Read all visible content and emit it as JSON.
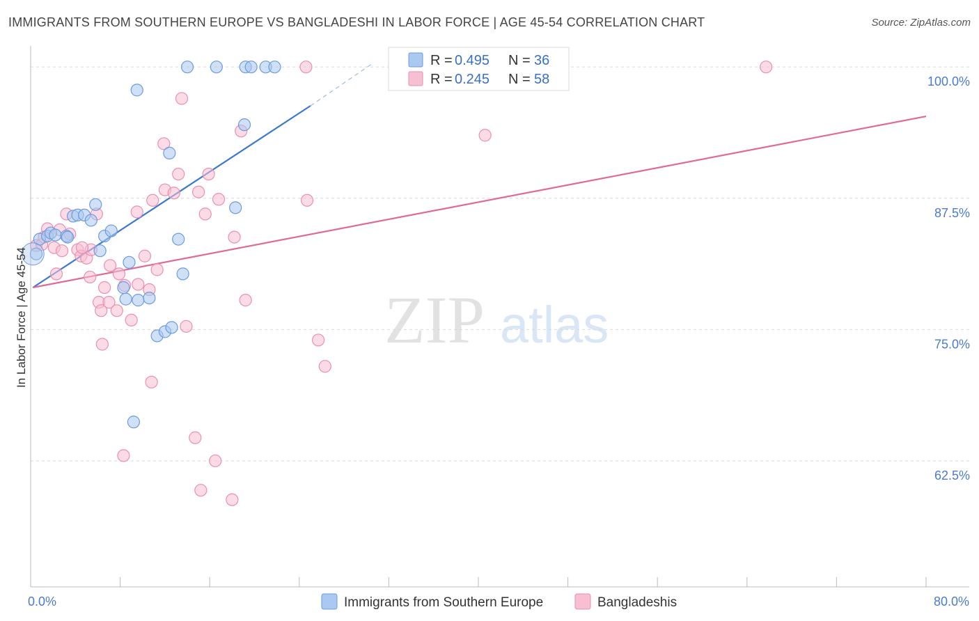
{
  "header": {
    "title": "IMMIGRANTS FROM SOUTHERN EUROPE VS BANGLADESHI IN LABOR FORCE | AGE 45-54 CORRELATION CHART",
    "source": "Source: ZipAtlas.com"
  },
  "watermark": {
    "zip": "ZIP",
    "atlas": "atlas"
  },
  "colors": {
    "blue_fill": "#aac8f0",
    "blue_stroke": "#6b9be0",
    "blue_line": "#3a78d0",
    "pink_fill": "#f7bfd2",
    "pink_stroke": "#ea8fb0",
    "pink_line": "#e06a96",
    "axis_text": "#4a7bd0",
    "grid": "#d8d8d8"
  },
  "chart_data": {
    "type": "scatter",
    "title": "IMMIGRANTS FROM SOUTHERN EUROPE VS BANGLADESHI IN LABOR FORCE | AGE 45-54 CORRELATION CHART",
    "xlabel": "",
    "ylabel": "In Labor Force | Age 45-54",
    "xlim": [
      0,
      80
    ],
    "ylim": [
      50.5,
      102
    ],
    "x_tick_labels": [
      {
        "value": 0,
        "label": "0.0%"
      },
      {
        "value": 80,
        "label": "80.0%"
      }
    ],
    "x_minor_ticks": [
      8,
      16,
      24,
      32,
      40,
      48,
      56,
      64,
      72
    ],
    "y_ticks": [
      {
        "value": 100,
        "label": "100.0%"
      },
      {
        "value": 87.5,
        "label": "87.5%"
      },
      {
        "value": 75,
        "label": "75.0%"
      },
      {
        "value": 62.5,
        "label": "62.5%"
      }
    ],
    "legend": {
      "rows": [
        {
          "r_label": "R =",
          "r": "0.495",
          "n_label": "N =",
          "n": "36"
        },
        {
          "r_label": "R =",
          "r": "0.245",
          "n_label": "N =",
          "n": "58"
        }
      ]
    },
    "series": [
      {
        "name": "Immigrants from Southern Europe",
        "trend": {
          "x": [
            0.2,
            25
          ],
          "y": [
            79.0,
            96.3
          ],
          "dashed_to": [
            30.5,
            100.3
          ]
        },
        "points": [
          [
            0.5,
            82.2
          ],
          [
            0.8,
            83.6
          ],
          [
            1.5,
            83.9
          ],
          [
            1.8,
            84.2
          ],
          [
            2.2,
            84.0
          ],
          [
            3.2,
            83.9
          ],
          [
            3.3,
            83.8
          ],
          [
            3.8,
            85.8
          ],
          [
            4.2,
            85.9
          ],
          [
            4.8,
            85.9
          ],
          [
            5.4,
            85.4
          ],
          [
            5.8,
            86.9
          ],
          [
            6.2,
            82.5
          ],
          [
            6.6,
            83.9
          ],
          [
            7.2,
            84.4
          ],
          [
            8.3,
            79.0
          ],
          [
            8.5,
            77.9
          ],
          [
            8.8,
            81.4
          ],
          [
            9.5,
            97.8
          ],
          [
            9.6,
            77.8
          ],
          [
            10.6,
            78.0
          ],
          [
            11.3,
            74.4
          ],
          [
            12.0,
            74.8
          ],
          [
            12.6,
            75.2
          ],
          [
            12.4,
            91.8
          ],
          [
            13.2,
            83.6
          ],
          [
            13.6,
            80.3
          ],
          [
            14.0,
            100.0
          ],
          [
            16.6,
            100.0
          ],
          [
            18.3,
            86.6
          ],
          [
            19.1,
            94.5
          ],
          [
            19.2,
            100.0
          ],
          [
            19.7,
            100.0
          ],
          [
            21.0,
            100.0
          ],
          [
            21.8,
            100.0
          ],
          [
            9.2,
            66.2
          ]
        ]
      },
      {
        "name": "Bangladeshis",
        "trend": {
          "x": [
            0.2,
            80
          ],
          "y": [
            79.0,
            95.3
          ]
        },
        "points": [
          [
            0.5,
            83.0
          ],
          [
            1.0,
            83.1
          ],
          [
            1.5,
            84.6
          ],
          [
            2.1,
            82.8
          ],
          [
            2.3,
            80.3
          ],
          [
            2.8,
            82.5
          ],
          [
            3.2,
            86.0
          ],
          [
            3.5,
            84.1
          ],
          [
            4.2,
            82.6
          ],
          [
            4.5,
            82.0
          ],
          [
            5.0,
            81.8
          ],
          [
            5.3,
            80.0
          ],
          [
            5.4,
            82.6
          ],
          [
            5.9,
            86.0
          ],
          [
            6.1,
            77.6
          ],
          [
            6.3,
            76.8
          ],
          [
            6.6,
            79.0
          ],
          [
            7.0,
            77.6
          ],
          [
            7.1,
            81.1
          ],
          [
            7.7,
            76.8
          ],
          [
            7.9,
            80.3
          ],
          [
            8.3,
            63.0
          ],
          [
            8.4,
            79.2
          ],
          [
            9.0,
            75.9
          ],
          [
            9.5,
            86.2
          ],
          [
            9.6,
            79.3
          ],
          [
            10.2,
            82.0
          ],
          [
            10.6,
            78.8
          ],
          [
            10.8,
            70.0
          ],
          [
            10.9,
            87.3
          ],
          [
            11.3,
            80.7
          ],
          [
            11.9,
            92.7
          ],
          [
            12.0,
            88.3
          ],
          [
            12.8,
            88.0
          ],
          [
            13.2,
            89.8
          ],
          [
            13.5,
            97.0
          ],
          [
            13.9,
            75.3
          ],
          [
            14.7,
            64.7
          ],
          [
            15.2,
            59.7
          ],
          [
            15.0,
            88.1
          ],
          [
            15.6,
            86.0
          ],
          [
            15.9,
            89.8
          ],
          [
            16.5,
            62.5
          ],
          [
            16.8,
            87.4
          ],
          [
            18.0,
            58.8
          ],
          [
            18.2,
            83.8
          ],
          [
            18.8,
            93.9
          ],
          [
            19.2,
            77.8
          ],
          [
            6.4,
            73.6
          ],
          [
            24.7,
            87.3
          ],
          [
            24.6,
            100.0
          ],
          [
            25.7,
            74.0
          ],
          [
            26.3,
            71.5
          ],
          [
            40.6,
            93.5
          ],
          [
            65.7,
            100.0
          ],
          [
            1.2,
            83.8
          ],
          [
            4.6,
            82.8
          ],
          [
            2.6,
            84.5
          ]
        ]
      }
    ]
  },
  "bottom_legend": [
    "Immigrants from Southern Europe",
    "Bangladeshis"
  ]
}
